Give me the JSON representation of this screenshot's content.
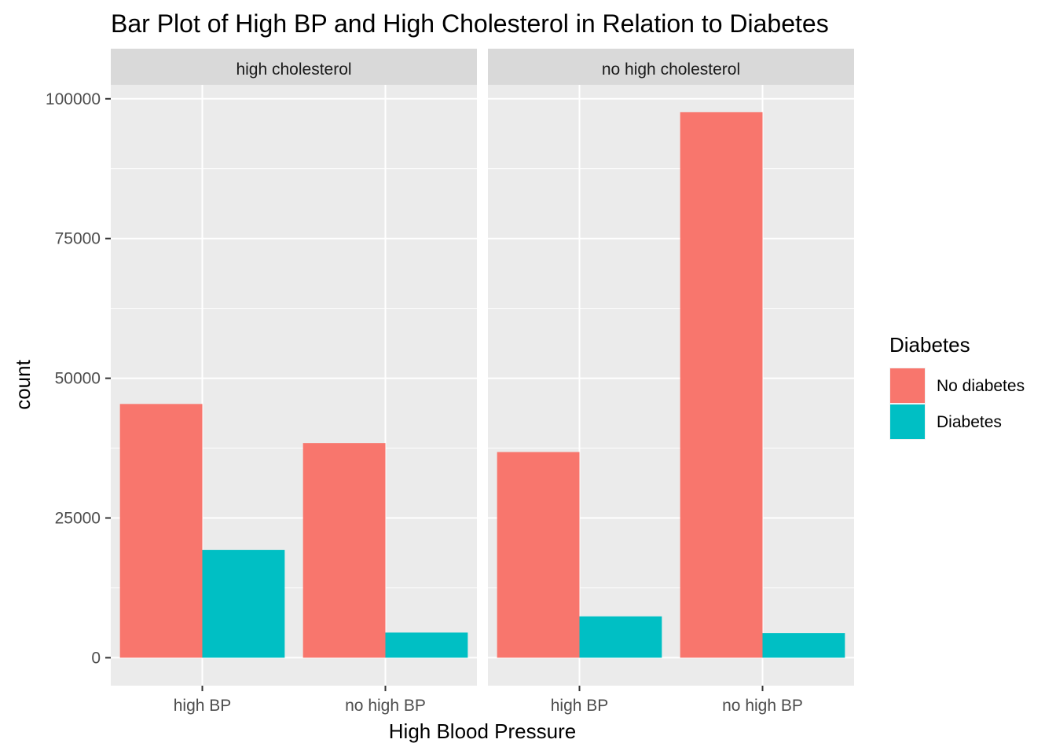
{
  "chart_data": {
    "type": "bar",
    "title": "Bar Plot of High BP and High Cholesterol in Relation to Diabetes",
    "xlabel": "High Blood Pressure",
    "ylabel": "count",
    "ylim": [
      -5000,
      102500
    ],
    "yticks": [
      0,
      25000,
      50000,
      75000,
      100000
    ],
    "yticklabels": [
      "0",
      "25000",
      "50000",
      "75000",
      "100000"
    ],
    "grid": true,
    "categories": [
      "high BP",
      "no high BP"
    ],
    "legend": {
      "title": "Diabetes",
      "placement": "right",
      "entries": [
        "No diabetes",
        "Diabetes"
      ]
    },
    "series_colors": [
      "#F8766D",
      "#00BFC4"
    ],
    "panels": [
      {
        "strip": "high cholesterol",
        "series": [
          {
            "name": "No diabetes",
            "values": [
              45400,
              38400
            ]
          },
          {
            "name": "Diabetes",
            "values": [
              19300,
              4500
            ]
          }
        ]
      },
      {
        "strip": "no high cholesterol",
        "series": [
          {
            "name": "No diabetes",
            "values": [
              36800,
              97600
            ]
          },
          {
            "name": "Diabetes",
            "values": [
              7400,
              4400
            ]
          }
        ]
      }
    ]
  }
}
